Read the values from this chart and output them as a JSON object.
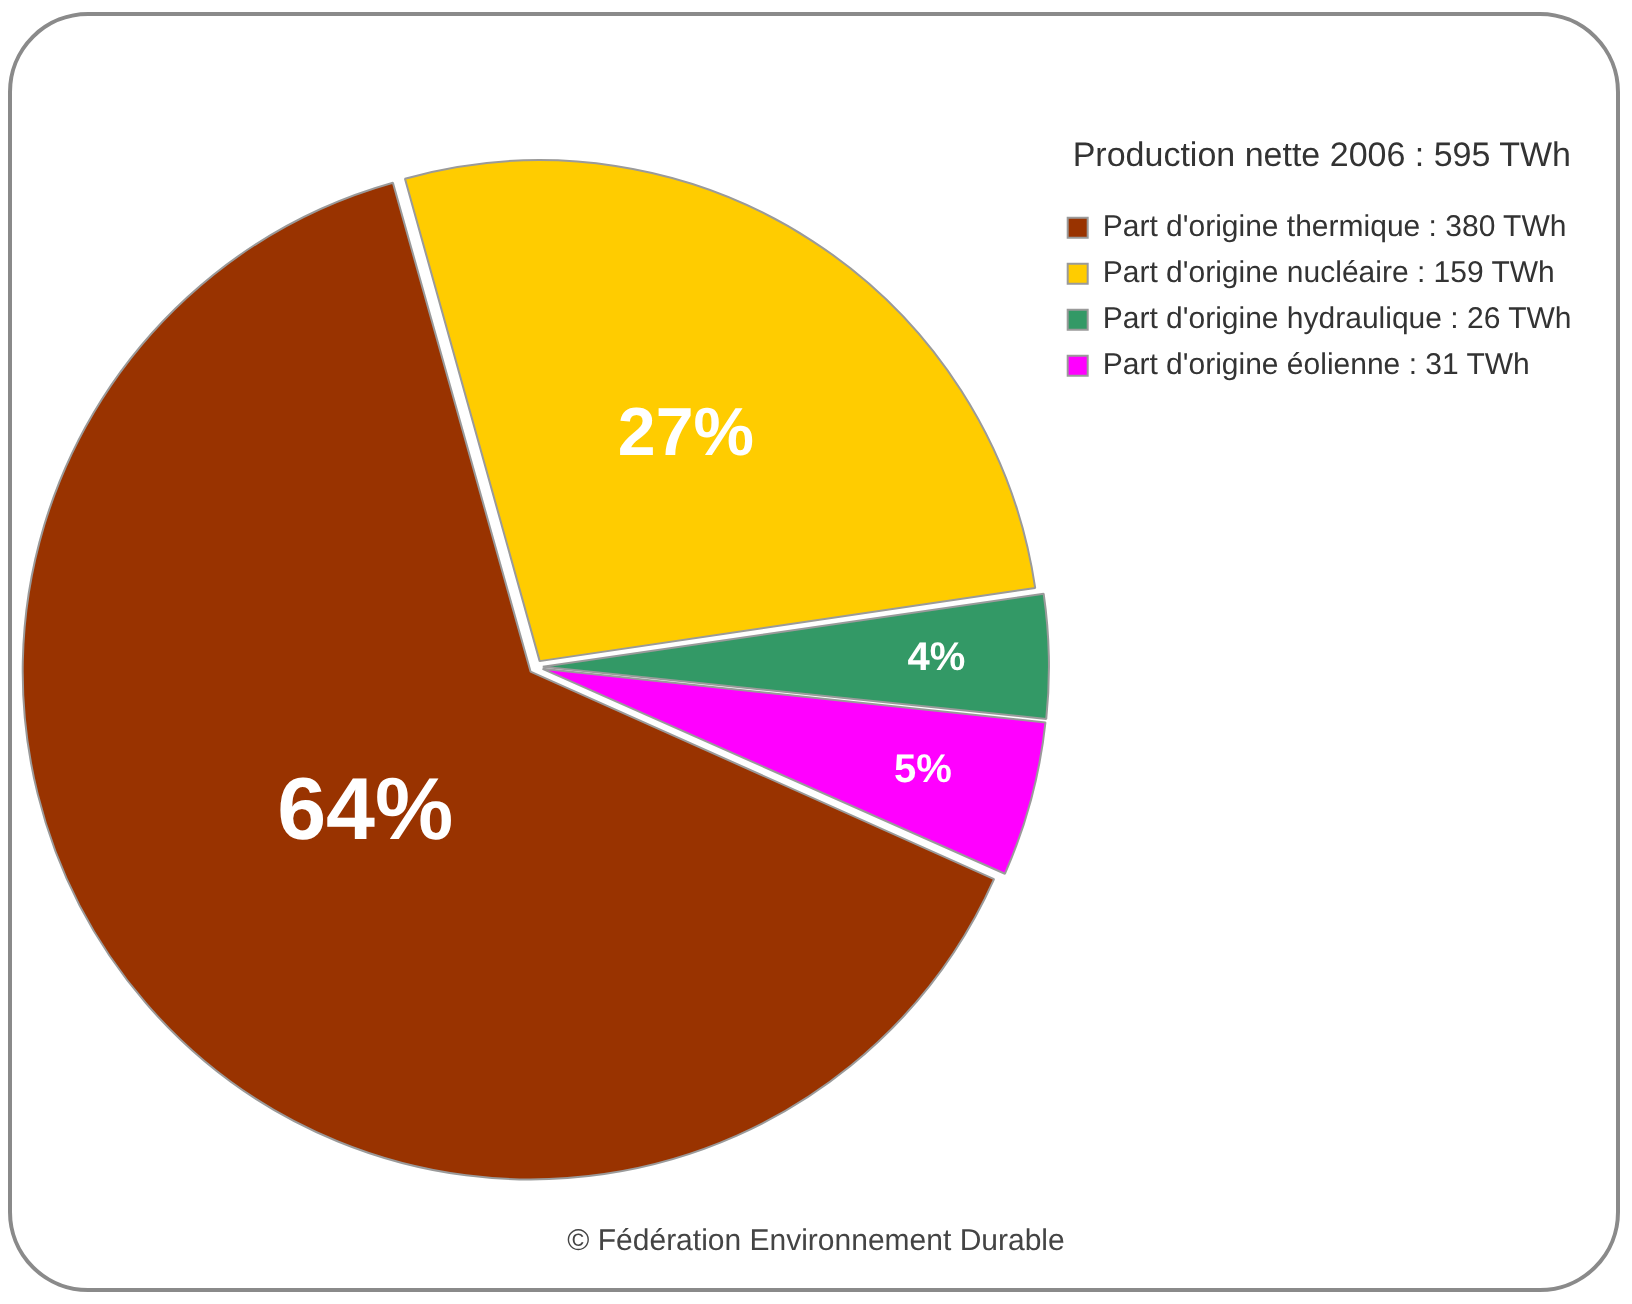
{
  "chart_data": {
    "type": "pie",
    "legend_title": "Production nette 2006 : 595 TWh",
    "categories": [
      "Part d'origine thermique : 380 TWh",
      "Part d'origine nucléaire : 159 TWh",
      "Part d'origine hydraulique : 26 TWh",
      "Part d'origine éolienne : 31 TWh"
    ],
    "values": [
      64,
      27,
      4,
      5
    ],
    "colors": [
      "#993300",
      "#ffcc00",
      "#339966",
      "#ff00ff"
    ],
    "value_labels": [
      "64%",
      "27%",
      "4%",
      "5%"
    ],
    "legend": "top right",
    "annotations": [
      "© Fédération Environnement Durable"
    ]
  }
}
